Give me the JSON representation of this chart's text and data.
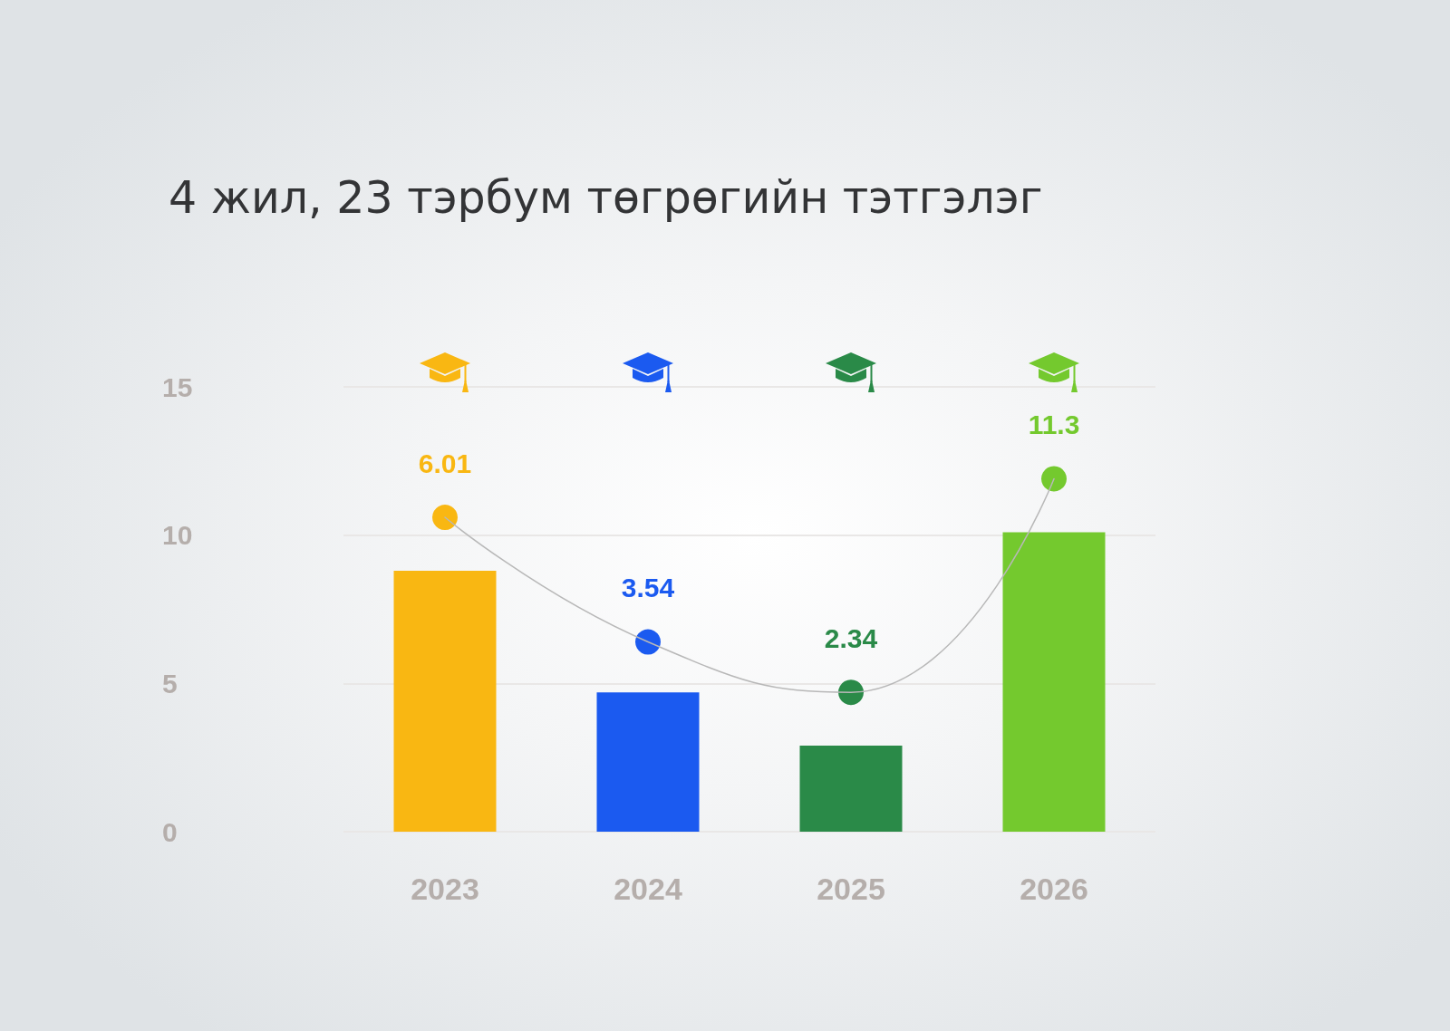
{
  "chart_data": {
    "type": "bar",
    "title": "4 жил, 23 тэрбум төгрөгийн тэтгэлэг",
    "categories": [
      "2023",
      "2024",
      "2025",
      "2026"
    ],
    "series": [
      {
        "colors": [
          "#f9b712",
          "#1b5af0",
          "#2a8a48",
          "#74c92e"
        ],
        "values": [
          8.8,
          4.7,
          2.9,
          10.1
        ]
      },
      {
        "type": "line",
        "color": "#b8b8b8",
        "colors": [
          "#f9b712",
          "#1b5af0",
          "#2a8a48",
          "#74c92e"
        ],
        "values": [
          10.6,
          6.4,
          4.7,
          11.9
        ],
        "marker": "circle",
        "line_style": "solid"
      }
    ],
    "ylim": [
      0,
      15
    ],
    "yticks": [
      0,
      5,
      10,
      15
    ],
    "grid": "y",
    "annotations": [
      "6.01",
      "3.54",
      "2.34",
      "11.3"
    ]
  }
}
